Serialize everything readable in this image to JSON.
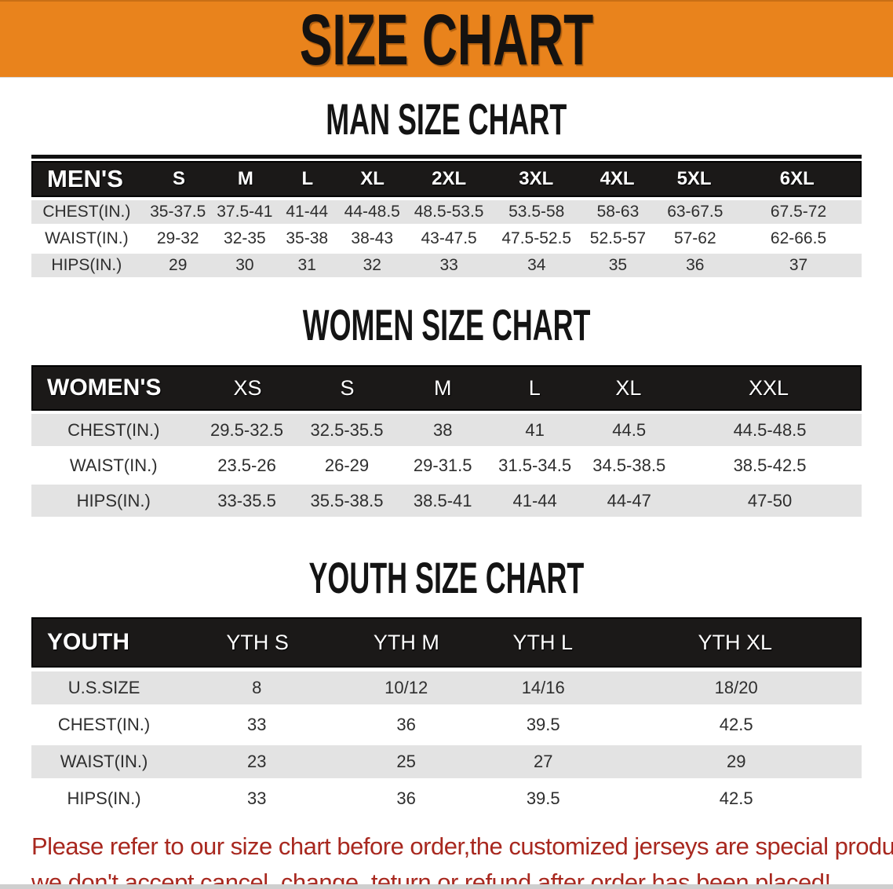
{
  "banner": {
    "title": "SIZE CHART",
    "bg_color": "#e9831c"
  },
  "sections": [
    {
      "heading": "MAN SIZE CHART",
      "table": {
        "header_label": "MEN'S",
        "columns": [
          "S",
          "M",
          "L",
          "XL",
          "2XL",
          "3XL",
          "4XL",
          "5XL",
          "6XL"
        ],
        "rows": [
          {
            "label": "CHEST(IN.)",
            "values": [
              "35-37.5",
              "37.5-41",
              "41-44",
              "44-48.5",
              "48.5-53.5",
              "53.5-58",
              "58-63",
              "63-67.5",
              "67.5-72"
            ]
          },
          {
            "label": "WAIST(IN.)",
            "values": [
              "29-32",
              "32-35",
              "35-38",
              "38-43",
              "43-47.5",
              "47.5-52.5",
              "52.5-57",
              "57-62",
              "62-66.5"
            ]
          },
          {
            "label": "HIPS(IN.)",
            "values": [
              "29",
              "30",
              "31",
              "32",
              "33",
              "34",
              "35",
              "36",
              "37"
            ]
          }
        ]
      }
    },
    {
      "heading": "WOMEN SIZE CHART",
      "table": {
        "header_label": "WOMEN'S",
        "columns": [
          "XS",
          "S",
          "M",
          "L",
          "XL",
          "XXL"
        ],
        "rows": [
          {
            "label": "CHEST(IN.)",
            "values": [
              "29.5-32.5",
              "32.5-35.5",
              "38",
              "41",
              "44.5",
              "44.5-48.5"
            ]
          },
          {
            "label": "WAIST(IN.)",
            "values": [
              "23.5-26",
              "26-29",
              "29-31.5",
              "31.5-34.5",
              "34.5-38.5",
              "38.5-42.5"
            ]
          },
          {
            "label": "HIPS(IN.)",
            "values": [
              "33-35.5",
              "35.5-38.5",
              "38.5-41",
              "41-44",
              "44-47",
              "47-50"
            ]
          }
        ]
      }
    },
    {
      "heading": "YOUTH SIZE CHART",
      "table": {
        "header_label": "YOUTH",
        "columns": [
          "YTH S",
          "YTH M",
          "YTH L",
          "YTH XL"
        ],
        "rows": [
          {
            "label": "U.S.SIZE",
            "values": [
              "8",
              "10/12",
              "14/16",
              "18/20"
            ]
          },
          {
            "label": "CHEST(IN.)",
            "values": [
              "33",
              "36",
              "39.5",
              "42.5"
            ]
          },
          {
            "label": "WAIST(IN.)",
            "values": [
              "23",
              "25",
              "27",
              "29"
            ]
          },
          {
            "label": "HIPS(IN.)",
            "values": [
              "33",
              "36",
              "39.5",
              "42.5"
            ]
          }
        ]
      }
    }
  ],
  "disclaimer": {
    "line1": "Please refer to our size chart before order,the customized jerseys are special products,",
    "line2": "we don't accept cancel, change, teturn or refund after order has been placed!",
    "color": "#a8281f"
  },
  "colors": {
    "header_bar": "#1b1918",
    "row_stripe": "#e3e3e3",
    "heading_text": "#141414"
  }
}
